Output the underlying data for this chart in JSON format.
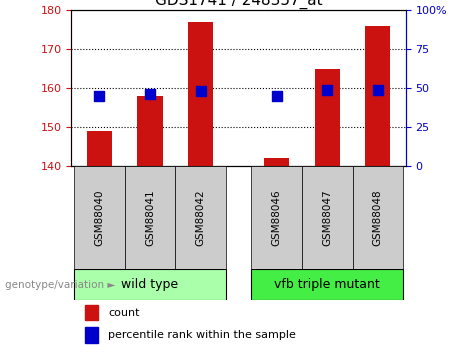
{
  "title": "GDS1741 / 248357_at",
  "categories": [
    "GSM88040",
    "GSM88041",
    "GSM88042",
    "GSM88046",
    "GSM88047",
    "GSM88048"
  ],
  "count_values": [
    149,
    158,
    177,
    142,
    165,
    176
  ],
  "percentile_values": [
    45,
    46,
    48,
    45,
    49,
    49
  ],
  "ylim_left": [
    140,
    180
  ],
  "ylim_right": [
    0,
    100
  ],
  "bar_color": "#cc1111",
  "dot_color": "#0000cc",
  "group1_label": "wild type",
  "group2_label": "vfb triple mutant",
  "group1_color": "#aaffaa",
  "group2_color": "#44ee44",
  "group_label_prefix": "genotype/variation",
  "legend_count_label": "count",
  "legend_percentile_label": "percentile rank within the sample",
  "bar_width": 0.5,
  "dot_size": 55,
  "tick_fontsize": 8,
  "label_fontsize": 8,
  "title_fontsize": 11,
  "yticks_left": [
    140,
    150,
    160,
    170,
    180
  ],
  "yticks_right": [
    0,
    25,
    50,
    75,
    100
  ],
  "x_positions": [
    0,
    1,
    2,
    3.5,
    4.5,
    5.5
  ],
  "xlim": [
    -0.55,
    6.05
  ],
  "gray_cell_color": "#cccccc"
}
